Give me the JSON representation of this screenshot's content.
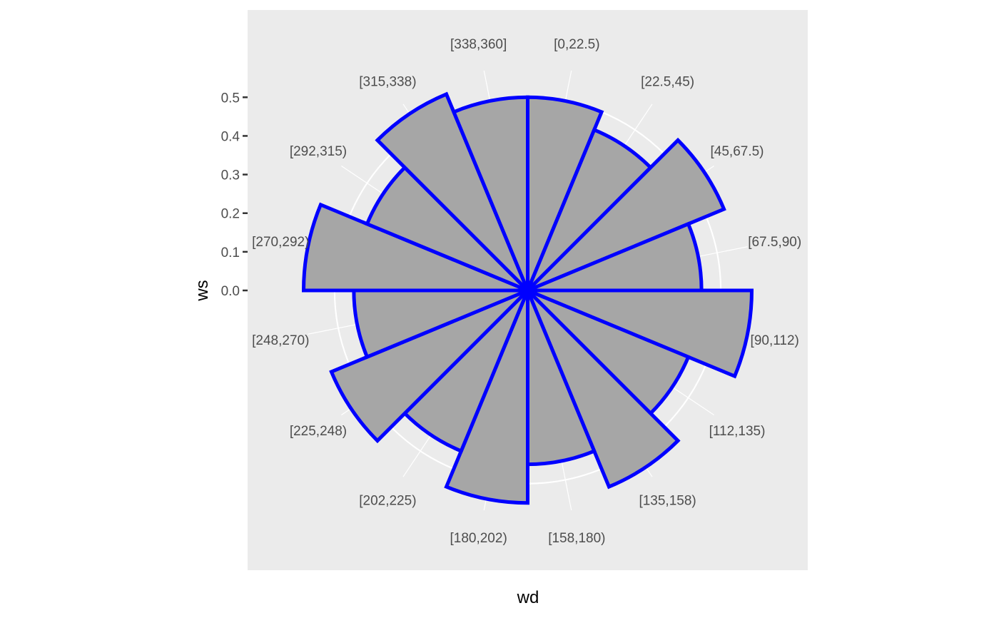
{
  "chart_data": {
    "type": "bar",
    "coord": "polar",
    "xlabel": "wd",
    "ylabel": "ws",
    "categories": [
      "[0,22.5)",
      "[22.5,45)",
      "[45,67.5)",
      "[67.5,90)",
      "[90,112)",
      "[112,135)",
      "[135,158)",
      "[158,180)",
      "[180,202)",
      "[202,225)",
      "[225,248)",
      "[248,270)",
      "[270,292)",
      "[292,315)",
      "[315,338)",
      "[338,360]"
    ],
    "values": [
      0.5,
      0.45,
      0.55,
      0.45,
      0.58,
      0.45,
      0.55,
      0.45,
      0.55,
      0.45,
      0.55,
      0.45,
      0.58,
      0.45,
      0.55,
      0.5
    ],
    "y_ticks": [
      0.0,
      0.1,
      0.2,
      0.3,
      0.4,
      0.5
    ],
    "y_tick_labels": [
      "0.0",
      "0.1",
      "0.2",
      "0.3",
      "0.4",
      "0.5"
    ],
    "ylim": [
      0,
      0.58
    ],
    "bar_fill": "#a6a6a6",
    "bar_stroke": "#0000ff",
    "panel_background": "#ebebeb",
    "grid_color": "#ffffff",
    "grid": true,
    "legend": "none"
  }
}
